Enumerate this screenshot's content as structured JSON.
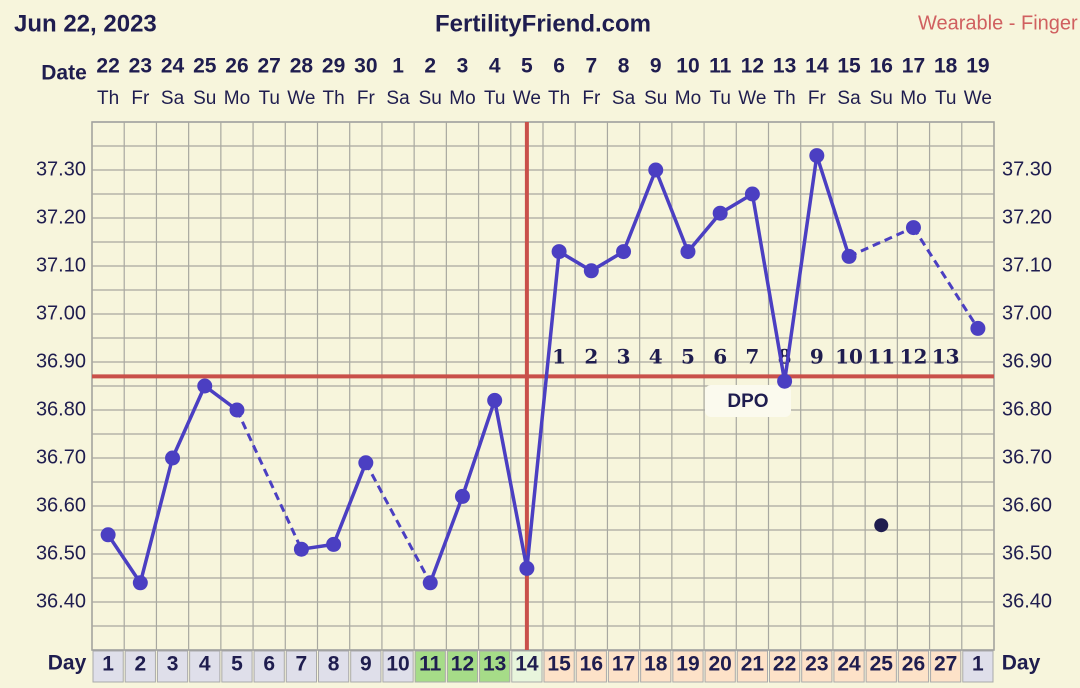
{
  "chart_data": {
    "type": "line",
    "date_label": "Jun 22, 2023",
    "title": "FertilityFriend.com",
    "subtitle": "Wearable - Finger",
    "date_axis_label": "Date",
    "categories": [
      22,
      23,
      24,
      25,
      26,
      27,
      28,
      29,
      30,
      1,
      2,
      3,
      4,
      5,
      6,
      7,
      8,
      9,
      10,
      11,
      12,
      13,
      14,
      15,
      16,
      17,
      18,
      19
    ],
    "weekdays": [
      "Th",
      "Fr",
      "Sa",
      "Su",
      "Mo",
      "Tu",
      "We",
      "Th",
      "Fr",
      "Sa",
      "Su",
      "Mo",
      "Tu",
      "We",
      "Th",
      "Fr",
      "Sa",
      "Su",
      "Mo",
      "Tu",
      "We",
      "Th",
      "Fr",
      "Sa",
      "Su",
      "Mo",
      "Tu",
      "We"
    ],
    "day_axis_label": "Day",
    "cycle_days": [
      1,
      2,
      3,
      4,
      5,
      6,
      7,
      8,
      9,
      10,
      11,
      12,
      13,
      14,
      15,
      16,
      17,
      18,
      19,
      20,
      21,
      22,
      23,
      24,
      25,
      26,
      27,
      1
    ],
    "day_colors": [
      "#dfdfea",
      "#dfdfea",
      "#dfdfea",
      "#dfdfea",
      "#dfdfea",
      "#dfdfea",
      "#dfdfea",
      "#dfdfea",
      "#dfdfea",
      "#dfdfea",
      "#a6dc88",
      "#a6dc88",
      "#a6dc88",
      "#e8f5dc",
      "#fde2c8",
      "#fde2c8",
      "#fde2c8",
      "#fde2c8",
      "#fde2c8",
      "#fde2c8",
      "#fde2c8",
      "#fde2c8",
      "#fde2c8",
      "#fde2c8",
      "#fde2c8",
      "#fde2c8",
      "#fde2c8",
      "#dfdfea"
    ],
    "values": [
      36.54,
      36.44,
      36.7,
      36.85,
      36.8,
      null,
      36.51,
      36.52,
      36.69,
      null,
      36.44,
      36.62,
      36.82,
      36.47,
      37.13,
      37.09,
      37.13,
      37.3,
      37.13,
      37.21,
      37.25,
      36.86,
      37.33,
      37.12,
      null,
      37.18,
      null,
      36.97
    ],
    "color": "#4b3fc2",
    "discarded": [
      null,
      null,
      null,
      null,
      null,
      null,
      null,
      null,
      null,
      null,
      null,
      null,
      null,
      null,
      null,
      null,
      null,
      null,
      null,
      null,
      null,
      null,
      null,
      null,
      36.56,
      null,
      null,
      null
    ],
    "discarded_color": "#1f1d4f",
    "coverline": 36.87,
    "coverline_color": "#c9504a",
    "ovulation_cycle_day": 14,
    "dpo": [
      null,
      null,
      null,
      null,
      null,
      null,
      null,
      null,
      null,
      null,
      null,
      null,
      null,
      null,
      1,
      2,
      3,
      4,
      5,
      6,
      7,
      8,
      9,
      10,
      11,
      12,
      13,
      null
    ],
    "dpo_label": "DPO",
    "ylim": [
      36.3,
      37.4
    ],
    "yticks": [
      {
        "value": 36.4,
        "label": "36.40"
      },
      {
        "value": 36.5,
        "label": "36.50"
      },
      {
        "value": 36.6,
        "label": "36.60"
      },
      {
        "value": 36.7,
        "label": "36.70"
      },
      {
        "value": 36.8,
        "label": "36.80"
      },
      {
        "value": 36.9,
        "label": "36.90"
      },
      {
        "value": 37.0,
        "label": "37.00"
      },
      {
        "value": 37.1,
        "label": "37.10"
      },
      {
        "value": 37.2,
        "label": "37.20"
      },
      {
        "value": 37.3,
        "label": "37.30"
      }
    ],
    "grid": true
  }
}
